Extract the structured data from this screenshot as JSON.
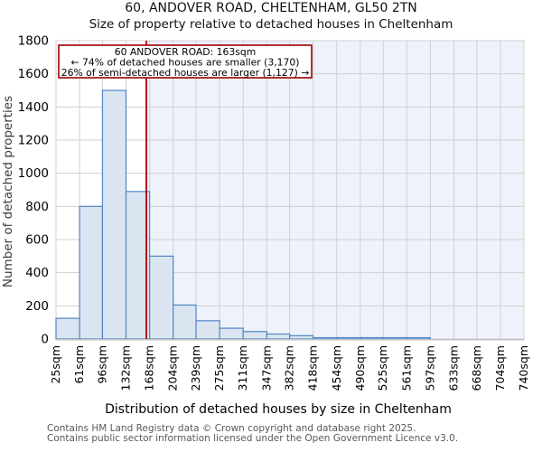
{
  "chart_data": {
    "type": "bar",
    "title": "60, ANDOVER ROAD, CHELTENHAM, GL50 2TN",
    "subtitle": "Size of property relative to detached houses in Cheltenham",
    "xlabel": "Distribution of detached houses by size in Cheltenham",
    "ylabel": "Number of detached properties",
    "xlim": [
      25,
      740
    ],
    "ylim": [
      0,
      1800
    ],
    "y_ticks": [
      0,
      200,
      400,
      600,
      800,
      1000,
      1200,
      1400,
      1600,
      1800
    ],
    "bin_edges": [
      25,
      61,
      96,
      132,
      168,
      204,
      239,
      275,
      311,
      347,
      382,
      418,
      454,
      490,
      525,
      561,
      597,
      633,
      668,
      704,
      740
    ],
    "x_tick_labels": [
      "25sqm",
      "61sqm",
      "96sqm",
      "132sqm",
      "168sqm",
      "204sqm",
      "239sqm",
      "275sqm",
      "311sqm",
      "347sqm",
      "382sqm",
      "418sqm",
      "454sqm",
      "490sqm",
      "525sqm",
      "561sqm",
      "597sqm",
      "633sqm",
      "668sqm",
      "704sqm",
      "740sqm"
    ],
    "values": [
      125,
      800,
      1500,
      890,
      500,
      205,
      110,
      65,
      45,
      30,
      20,
      8,
      8,
      8,
      8,
      8,
      0,
      0,
      0,
      0
    ],
    "grid": true,
    "legend": "none",
    "marker": {
      "value": 163,
      "annotation_line1": "60 ANDOVER ROAD: 163sqm",
      "annotation_line2": "← 74% of detached houses are smaller (3,170)",
      "annotation_line3": "26% of semi-detached houses are larger (1,127) →"
    },
    "colors": {
      "bar_fill": "#dbe5f1",
      "bar_edge": "#4f86c6",
      "marker_line": "#b40000",
      "annotation_border": "#a00000",
      "annotation_bg": "#ffffff",
      "shade_right_of_marker": "#eef2fb",
      "grid": "#d0d0d0",
      "axis_line": "#c0c0c0",
      "tick_text": "#000000",
      "axis_label_text": "#3c3c3c"
    }
  },
  "footer": {
    "line1": "Contains HM Land Registry data © Crown copyright and database right 2025.",
    "line2": "Contains public sector information licensed under the Open Government Licence v3.0."
  }
}
